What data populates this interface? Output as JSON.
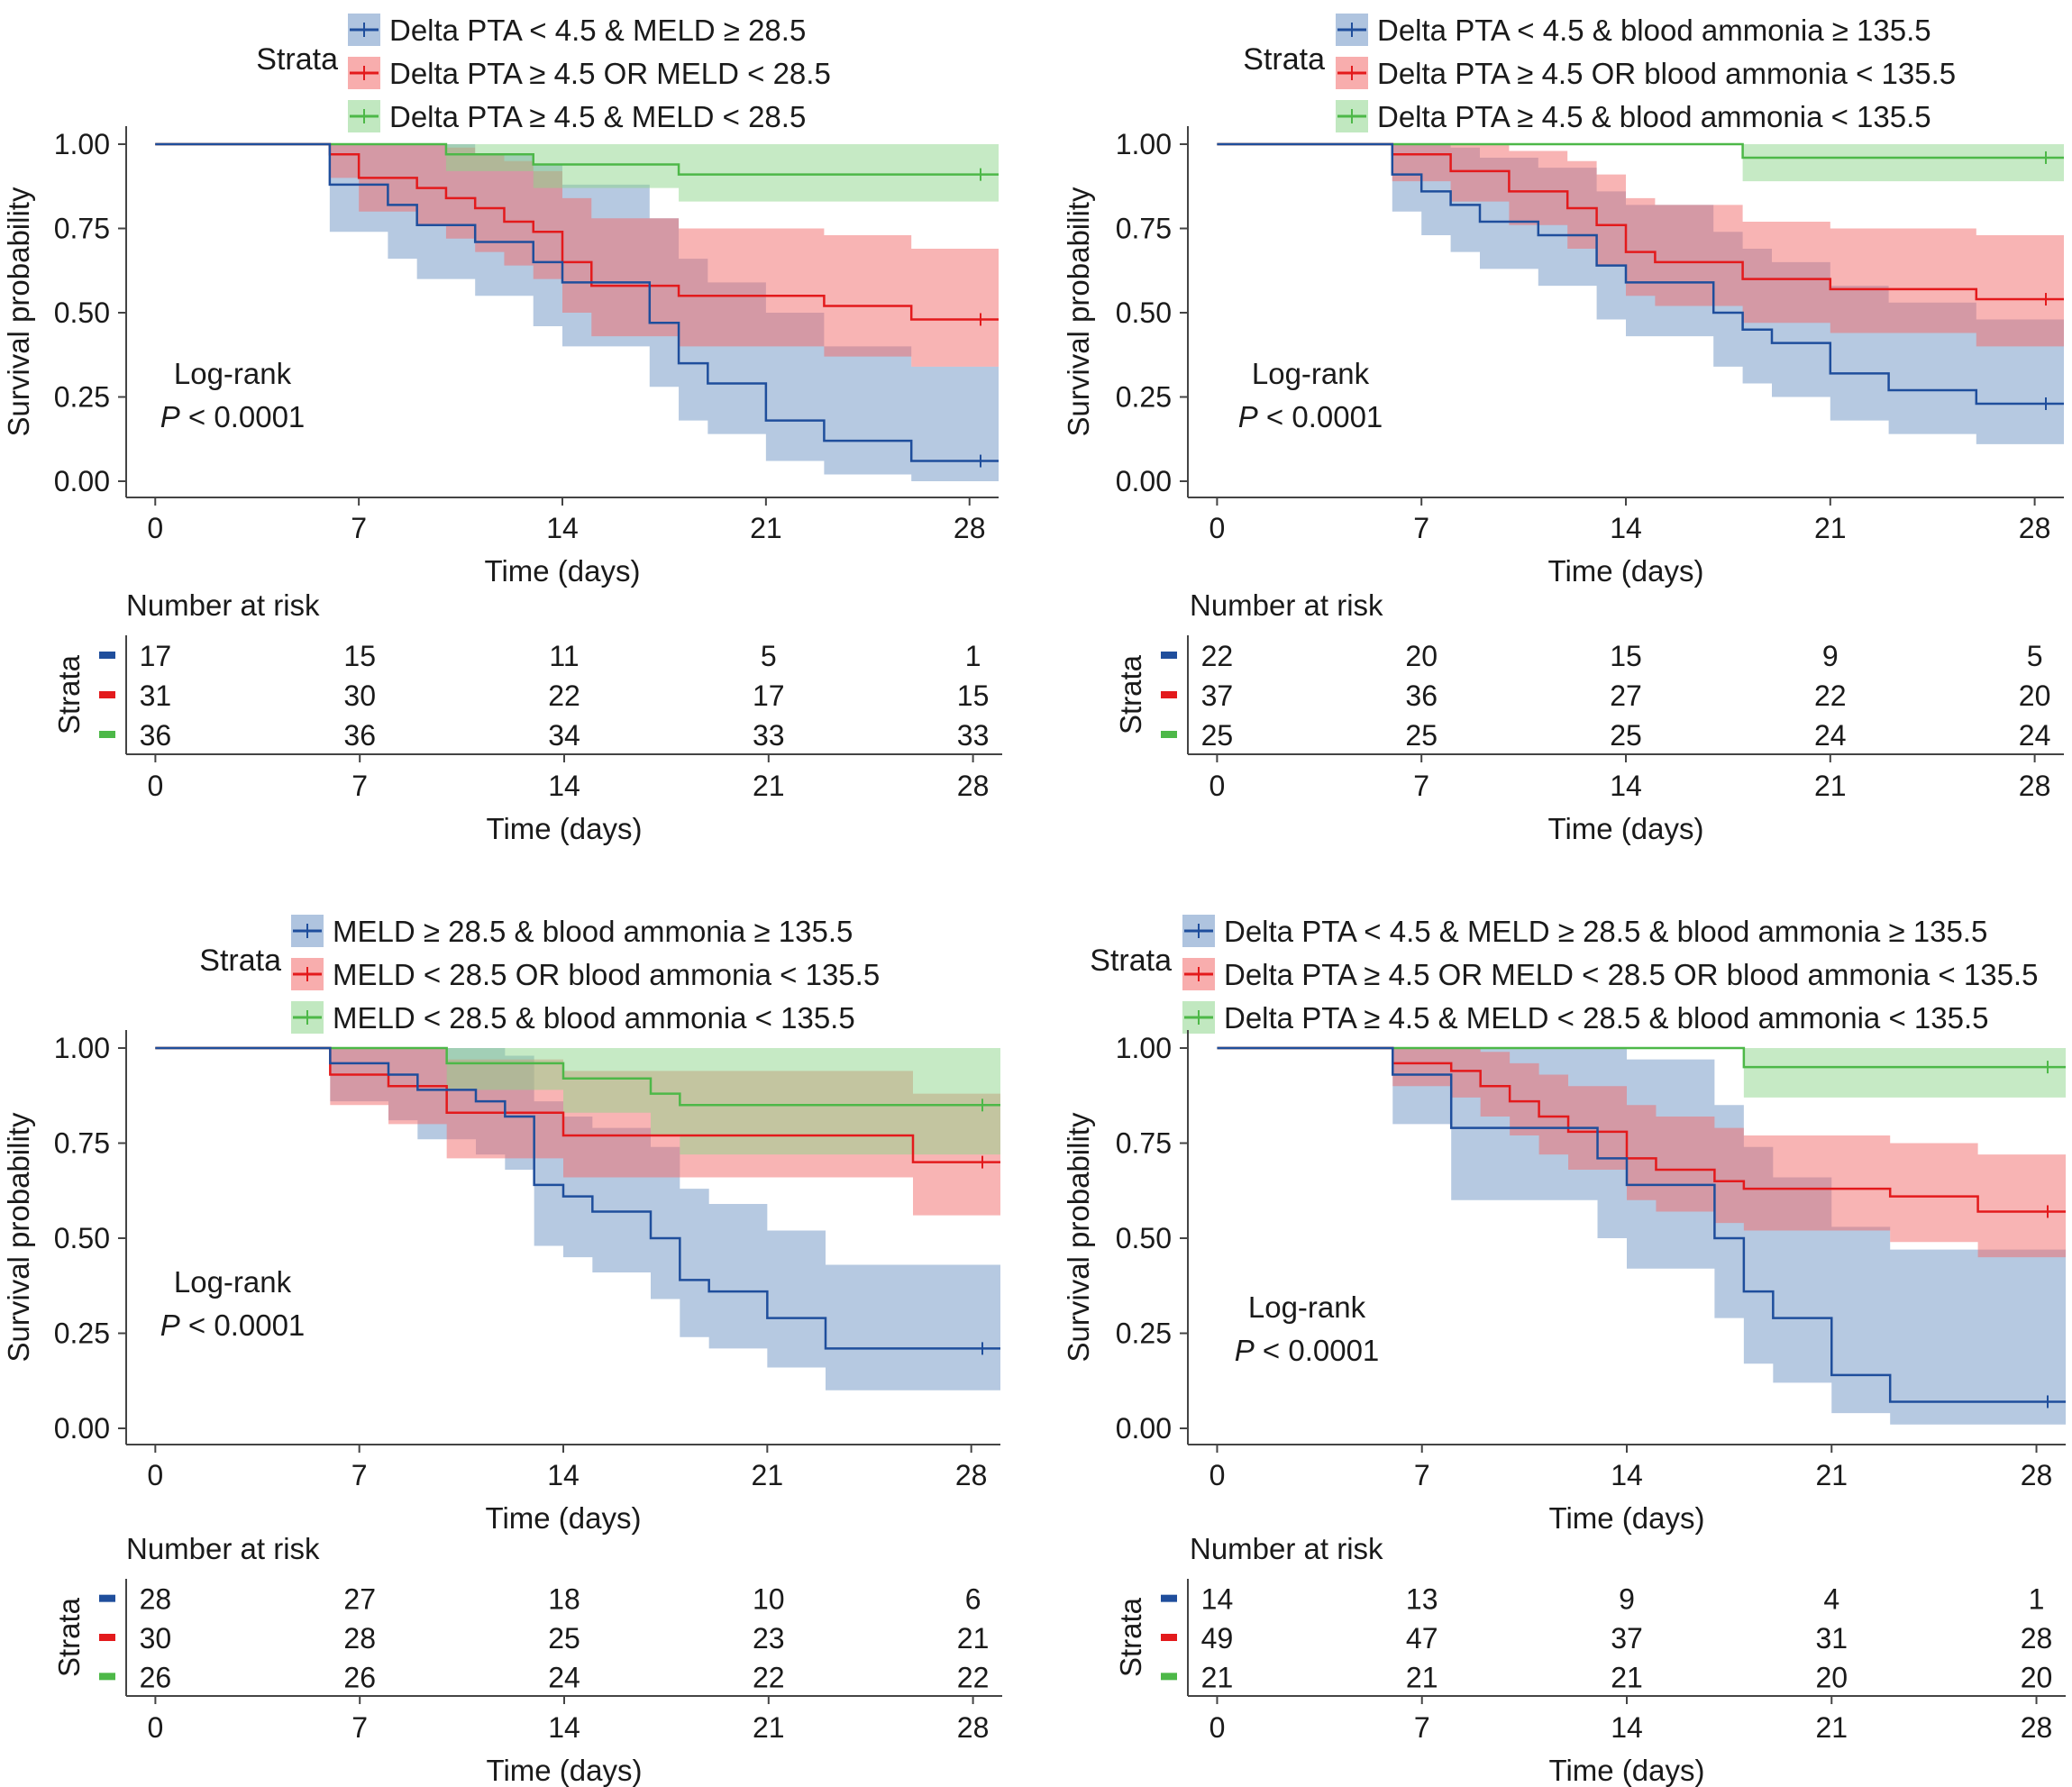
{
  "colors": {
    "blue": "#1f4e9c",
    "red": "#e31a1c",
    "green": "#4db848",
    "blue_fill": "#6e93c4",
    "red_fill": "#f26a6a",
    "green_fill": "#8ed68c",
    "axis": "#444444"
  },
  "chart_data": [
    {
      "type": "line",
      "subtype": "kaplan-meier",
      "legend_title": "Strata",
      "legend": [
        "Delta PTA < 4.5 & MELD ≥ 28.5",
        "Delta PTA ≥ 4.5 OR MELD < 28.5",
        "Delta PTA ≥ 4.5 & MELD < 28.5"
      ],
      "ylabel": "Survival probability",
      "xlabel": "Time (days)",
      "xlim": [
        -1,
        29
      ],
      "ylim": [
        0,
        1
      ],
      "xticks": [
        "0",
        "7",
        "14",
        "21",
        "28"
      ],
      "yticks": [
        "0.00",
        "0.25",
        "0.50",
        "0.75",
        "1.00"
      ],
      "annotation": [
        "Log-rank",
        "P",
        " < 0.0001"
      ],
      "series": [
        {
          "name": "Delta PTA < 4.5 & MELD ≥ 28.5",
          "color": "blue",
          "x": [
            0,
            6,
            8,
            9,
            11,
            13,
            14,
            17,
            18,
            19,
            21,
            23,
            26,
            29
          ],
          "y": [
            1.0,
            0.88,
            0.82,
            0.76,
            0.71,
            0.65,
            0.59,
            0.47,
            0.35,
            0.29,
            0.18,
            0.12,
            0.06,
            0.06
          ],
          "lower": [
            1.0,
            0.74,
            0.66,
            0.6,
            0.55,
            0.46,
            0.4,
            0.28,
            0.18,
            0.14,
            0.06,
            0.02,
            0.0,
            0.0
          ],
          "upper": [
            1.0,
            1.0,
            1.0,
            1.0,
            0.97,
            0.94,
            0.88,
            0.78,
            0.66,
            0.59,
            0.5,
            0.4,
            0.34,
            0.34
          ]
        },
        {
          "name": "Delta PTA ≥ 4.5 OR MELD < 28.5",
          "color": "red",
          "x": [
            0,
            6,
            7,
            9,
            10,
            11,
            12,
            13,
            14,
            15,
            18,
            21,
            23,
            26,
            29
          ],
          "y": [
            1.0,
            0.97,
            0.9,
            0.87,
            0.84,
            0.81,
            0.77,
            0.74,
            0.65,
            0.58,
            0.55,
            0.55,
            0.52,
            0.48,
            0.48
          ],
          "lower": [
            1.0,
            0.9,
            0.8,
            0.76,
            0.72,
            0.68,
            0.64,
            0.6,
            0.5,
            0.43,
            0.4,
            0.4,
            0.37,
            0.34,
            0.34
          ],
          "upper": [
            1.0,
            1.0,
            1.0,
            1.0,
            0.99,
            0.97,
            0.95,
            0.92,
            0.84,
            0.78,
            0.75,
            0.75,
            0.73,
            0.69,
            0.69
          ]
        },
        {
          "name": "Delta PTA ≥ 4.5 & MELD < 28.5",
          "color": "green",
          "x": [
            0,
            6,
            10,
            13,
            18,
            29
          ],
          "y": [
            1.0,
            1.0,
            0.97,
            0.94,
            0.91,
            0.91
          ],
          "lower": [
            1.0,
            1.0,
            0.92,
            0.87,
            0.83,
            0.83
          ],
          "upper": [
            1.0,
            1.0,
            1.0,
            1.0,
            1.0,
            1.0
          ]
        }
      ],
      "risk_table": {
        "title": "Number at risk",
        "ylabel": "Strata",
        "xlabel": "Time (days)",
        "rows": [
          [
            "17",
            "15",
            "11",
            "5",
            "1"
          ],
          [
            "31",
            "30",
            "22",
            "17",
            "15"
          ],
          [
            "36",
            "36",
            "34",
            "33",
            "33"
          ]
        ]
      }
    },
    {
      "type": "line",
      "subtype": "kaplan-meier",
      "legend_title": "Strata",
      "legend": [
        "Delta PTA < 4.5 & blood ammonia ≥ 135.5",
        "Delta PTA ≥ 4.5 OR blood ammonia < 135.5",
        "Delta PTA ≥ 4.5 & blood ammonia < 135.5"
      ],
      "ylabel": "Survival probability",
      "xlabel": "Time (days)",
      "xlim": [
        -1,
        29
      ],
      "ylim": [
        0,
        1
      ],
      "xticks": [
        "0",
        "7",
        "14",
        "21",
        "28"
      ],
      "yticks": [
        "0.00",
        "0.25",
        "0.50",
        "0.75",
        "1.00"
      ],
      "annotation": [
        "Log-rank",
        "P",
        " < 0.0001"
      ],
      "series": [
        {
          "name": "Delta PTA < 4.5 & blood ammonia ≥ 135.5",
          "color": "blue",
          "x": [
            0,
            6,
            7,
            8,
            9,
            11,
            13,
            14,
            17,
            18,
            19,
            21,
            23,
            26,
            29
          ],
          "y": [
            1.0,
            0.91,
            0.86,
            0.82,
            0.77,
            0.73,
            0.64,
            0.59,
            0.5,
            0.45,
            0.41,
            0.32,
            0.27,
            0.23,
            0.23
          ],
          "lower": [
            1.0,
            0.8,
            0.73,
            0.68,
            0.63,
            0.58,
            0.48,
            0.43,
            0.34,
            0.29,
            0.25,
            0.18,
            0.14,
            0.11,
            0.11
          ],
          "upper": [
            1.0,
            1.0,
            1.0,
            0.99,
            0.96,
            0.93,
            0.86,
            0.82,
            0.74,
            0.69,
            0.65,
            0.58,
            0.53,
            0.48,
            0.48
          ]
        },
        {
          "name": "Delta PTA ≥ 4.5 OR blood ammonia < 135.5",
          "color": "red",
          "x": [
            0,
            6,
            8,
            10,
            12,
            13,
            14,
            15,
            18,
            21,
            26,
            29
          ],
          "y": [
            1.0,
            0.97,
            0.92,
            0.86,
            0.81,
            0.76,
            0.68,
            0.65,
            0.6,
            0.57,
            0.54,
            0.54
          ],
          "lower": [
            1.0,
            0.89,
            0.83,
            0.76,
            0.69,
            0.64,
            0.55,
            0.52,
            0.47,
            0.44,
            0.4,
            0.4
          ],
          "upper": [
            1.0,
            1.0,
            1.0,
            0.98,
            0.95,
            0.91,
            0.84,
            0.82,
            0.77,
            0.75,
            0.73,
            0.73
          ]
        },
        {
          "name": "Delta PTA ≥ 4.5 & blood ammonia < 135.5",
          "color": "green",
          "x": [
            0,
            18,
            29
          ],
          "y": [
            1.0,
            0.96,
            0.96
          ],
          "lower": [
            1.0,
            0.89,
            0.89
          ],
          "upper": [
            1.0,
            1.0,
            1.0
          ]
        }
      ],
      "risk_table": {
        "title": "Number at risk",
        "ylabel": "Strata",
        "xlabel": "Time (days)",
        "rows": [
          [
            "22",
            "20",
            "15",
            "9",
            "5"
          ],
          [
            "37",
            "36",
            "27",
            "22",
            "20"
          ],
          [
            "25",
            "25",
            "25",
            "24",
            "24"
          ]
        ]
      }
    },
    {
      "type": "line",
      "subtype": "kaplan-meier",
      "legend_title": "Strata",
      "legend": [
        "MELD ≥ 28.5 & blood ammonia ≥ 135.5",
        "MELD < 28.5 OR blood ammonia < 135.5",
        "MELD < 28.5 & blood ammonia < 135.5"
      ],
      "ylabel": "Survival probability",
      "xlabel": "Time (days)",
      "xlim": [
        -1,
        29
      ],
      "ylim": [
        0,
        1
      ],
      "xticks": [
        "0",
        "7",
        "14",
        "21",
        "28"
      ],
      "yticks": [
        "0.00",
        "0.25",
        "0.50",
        "0.75",
        "1.00"
      ],
      "annotation": [
        "Log-rank",
        "P",
        " < 0.0001"
      ],
      "series": [
        {
          "name": "MELD ≥ 28.5 & blood ammonia ≥ 135.5",
          "color": "blue",
          "x": [
            0,
            6,
            8,
            9,
            11,
            12,
            13,
            14,
            15,
            17,
            18,
            19,
            21,
            23,
            29
          ],
          "y": [
            1.0,
            0.96,
            0.93,
            0.89,
            0.86,
            0.82,
            0.64,
            0.61,
            0.57,
            0.5,
            0.39,
            0.36,
            0.29,
            0.21,
            0.21
          ],
          "lower": [
            1.0,
            0.86,
            0.81,
            0.76,
            0.72,
            0.68,
            0.48,
            0.45,
            0.41,
            0.34,
            0.24,
            0.21,
            0.16,
            0.1,
            0.1
          ],
          "upper": [
            1.0,
            1.0,
            1.0,
            1.0,
            1.0,
            0.98,
            0.86,
            0.82,
            0.79,
            0.74,
            0.63,
            0.59,
            0.52,
            0.43,
            0.43
          ]
        },
        {
          "name": "MELD < 28.5 OR blood ammonia < 135.5",
          "color": "red",
          "x": [
            0,
            6,
            8,
            10,
            14,
            17,
            26,
            29
          ],
          "y": [
            1.0,
            0.93,
            0.9,
            0.83,
            0.77,
            0.77,
            0.7,
            0.7
          ],
          "lower": [
            1.0,
            0.85,
            0.8,
            0.71,
            0.66,
            0.66,
            0.56,
            0.56
          ],
          "upper": [
            1.0,
            1.0,
            1.0,
            0.97,
            0.94,
            0.94,
            0.88,
            0.88
          ]
        },
        {
          "name": "MELD < 28.5 & blood ammonia < 135.5",
          "color": "green",
          "x": [
            0,
            6,
            10,
            14,
            17,
            18,
            29
          ],
          "y": [
            1.0,
            1.0,
            0.96,
            0.92,
            0.88,
            0.85,
            0.85
          ],
          "lower": [
            1.0,
            1.0,
            0.89,
            0.83,
            0.77,
            0.72,
            0.72
          ],
          "upper": [
            1.0,
            1.0,
            1.0,
            1.0,
            1.0,
            1.0,
            1.0
          ]
        }
      ],
      "risk_table": {
        "title": "Number at risk",
        "ylabel": "Strata",
        "xlabel": "Time (days)",
        "rows": [
          [
            "28",
            "27",
            "18",
            "10",
            "6"
          ],
          [
            "30",
            "28",
            "25",
            "23",
            "21"
          ],
          [
            "26",
            "26",
            "24",
            "22",
            "22"
          ]
        ]
      }
    },
    {
      "type": "line",
      "subtype": "kaplan-meier",
      "legend_title": "Strata",
      "legend": [
        "Delta PTA < 4.5 & MELD ≥ 28.5 & blood ammonia ≥ 135.5",
        "Delta PTA ≥ 4.5 OR MELD < 28.5 OR blood ammonia < 135.5",
        "Delta PTA ≥ 4.5 & MELD < 28.5 & blood ammonia < 135.5"
      ],
      "ylabel": "Survival probability",
      "xlabel": "Time (days)",
      "xlim": [
        -1,
        29
      ],
      "ylim": [
        0,
        1
      ],
      "xticks": [
        "0",
        "7",
        "14",
        "21",
        "28"
      ],
      "yticks": [
        "0.00",
        "0.25",
        "0.50",
        "0.75",
        "1.00"
      ],
      "annotation": [
        "Log-rank",
        "P",
        " < 0.0001"
      ],
      "series": [
        {
          "name": "Delta PTA < 4.5 & MELD ≥ 28.5 & blood ammonia ≥ 135.5",
          "color": "blue",
          "x": [
            0,
            6,
            8,
            13,
            14,
            17,
            18,
            19,
            21,
            23,
            29
          ],
          "y": [
            1.0,
            0.93,
            0.79,
            0.71,
            0.64,
            0.5,
            0.36,
            0.29,
            0.14,
            0.07,
            0.07
          ],
          "lower": [
            1.0,
            0.8,
            0.6,
            0.5,
            0.42,
            0.29,
            0.17,
            0.12,
            0.04,
            0.01,
            0.01
          ],
          "upper": [
            1.0,
            1.0,
            1.0,
            1.0,
            0.97,
            0.85,
            0.74,
            0.66,
            0.53,
            0.47,
            0.47
          ]
        },
        {
          "name": "Delta PTA ≥ 4.5 OR MELD < 28.5 OR blood ammonia < 135.5",
          "color": "red",
          "x": [
            0,
            6,
            8,
            9,
            10,
            11,
            12,
            14,
            15,
            17,
            18,
            21,
            23,
            26,
            29
          ],
          "y": [
            1.0,
            0.96,
            0.94,
            0.9,
            0.86,
            0.82,
            0.78,
            0.71,
            0.68,
            0.65,
            0.63,
            0.63,
            0.61,
            0.57,
            0.57
          ],
          "lower": [
            1.0,
            0.9,
            0.87,
            0.82,
            0.77,
            0.72,
            0.68,
            0.6,
            0.57,
            0.54,
            0.52,
            0.52,
            0.49,
            0.45,
            0.45
          ],
          "upper": [
            1.0,
            1.0,
            1.0,
            0.99,
            0.96,
            0.93,
            0.9,
            0.85,
            0.82,
            0.79,
            0.77,
            0.77,
            0.75,
            0.72,
            0.72
          ]
        },
        {
          "name": "Delta PTA ≥ 4.5 & MELD < 28.5 & blood ammonia < 135.5",
          "color": "green",
          "x": [
            0,
            18,
            29
          ],
          "y": [
            1.0,
            0.95,
            0.95
          ],
          "lower": [
            1.0,
            0.87,
            0.87
          ],
          "upper": [
            1.0,
            1.0,
            1.0
          ]
        }
      ],
      "risk_table": {
        "title": "Number at risk",
        "ylabel": "Strata",
        "xlabel": "Time (days)",
        "rows": [
          [
            "14",
            "13",
            "9",
            "4",
            "1"
          ],
          [
            "49",
            "47",
            "37",
            "31",
            "28"
          ],
          [
            "21",
            "21",
            "21",
            "20",
            "20"
          ]
        ]
      }
    }
  ]
}
